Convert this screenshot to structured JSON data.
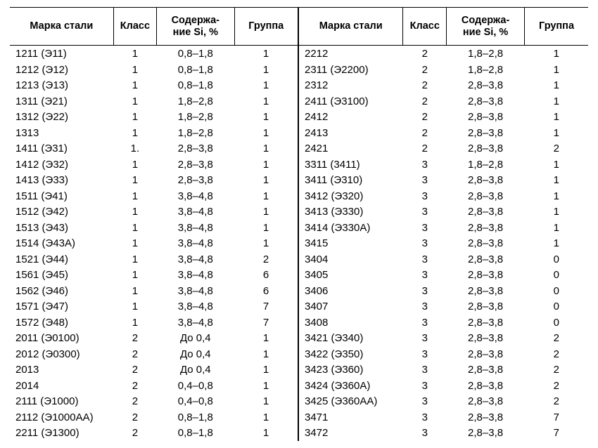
{
  "headers": {
    "mark": "Марка стали",
    "klass": "Класс",
    "si": "Содержа-\nние Si, %",
    "group": "Группа"
  },
  "columns": [
    "mark",
    "klass",
    "si",
    "group"
  ],
  "widths": {
    "mark": "36%",
    "klass": "15%",
    "si": "27%",
    "group": "22%"
  },
  "fonts": {
    "header_pt": 14.5,
    "body_pt": 15
  },
  "colors": {
    "text": "#000000",
    "background": "#ffffff",
    "border": "#000000"
  },
  "left": [
    {
      "mark": "1211 (Э11)",
      "klass": "1",
      "si": "0,8–1,8",
      "group": "1"
    },
    {
      "mark": "1212 (Э12)",
      "klass": "1",
      "si": "0,8–1,8",
      "group": "1"
    },
    {
      "mark": "1213 (Э13)",
      "klass": "1",
      "si": "0,8–1,8",
      "group": "1"
    },
    {
      "mark": "1311 (Э21)",
      "klass": "1",
      "si": "1,8–2,8",
      "group": "1"
    },
    {
      "mark": "1312 (Э22)",
      "klass": "1",
      "si": "1,8–2,8",
      "group": "1"
    },
    {
      "mark": "1313",
      "klass": "1",
      "si": "1,8–2,8",
      "group": "1"
    },
    {
      "mark": "1411 (Э31)",
      "klass": "1.",
      "si": "2,8–3,8",
      "group": "1"
    },
    {
      "mark": "1412 (Э32)",
      "klass": "1",
      "si": "2,8–3,8",
      "group": "1"
    },
    {
      "mark": "1413 (Э33)",
      "klass": "1",
      "si": "2,8–3,8",
      "group": "1"
    },
    {
      "mark": "1511 (Э41)",
      "klass": "1",
      "si": "3,8–4,8",
      "group": "1"
    },
    {
      "mark": "1512 (Э42)",
      "klass": "1",
      "si": "3,8–4,8",
      "group": "1"
    },
    {
      "mark": "1513 (Э43)",
      "klass": "1",
      "si": "3,8–4,8",
      "group": "1"
    },
    {
      "mark": "1514 (Э43А)",
      "klass": "1",
      "si": "3,8–4,8",
      "group": "1"
    },
    {
      "mark": "1521 (Э44)",
      "klass": "1",
      "si": "3,8–4,8",
      "group": "2"
    },
    {
      "mark": "1561 (Э45)",
      "klass": "1",
      "si": "3,8–4,8",
      "group": "6"
    },
    {
      "mark": "1562 (Э46)",
      "klass": "1",
      "si": "3,8–4,8",
      "group": "6"
    },
    {
      "mark": "1571 (Э47)",
      "klass": "1",
      "si": "3,8–4,8",
      "group": "7"
    },
    {
      "mark": "1572 (Э48)",
      "klass": "1",
      "si": "3,8–4,8",
      "group": "7"
    },
    {
      "mark": "2011 (Э0100)",
      "klass": "2",
      "si": "До 0,4",
      "group": "1"
    },
    {
      "mark": "2012 (Э0300)",
      "klass": "2",
      "si": "До 0,4",
      "group": "1"
    },
    {
      "mark": "2013",
      "klass": "2",
      "si": "До 0,4",
      "group": "1"
    },
    {
      "mark": "2014",
      "klass": "2",
      "si": "0,4–0,8",
      "group": "1"
    },
    {
      "mark": "2111 (Э1000)",
      "klass": "2",
      "si": "0,4–0,8",
      "group": "1"
    },
    {
      "mark": "2112 (Э1000АА)",
      "klass": "2",
      "si": "0,8–1,8",
      "group": "1"
    },
    {
      "mark": "2211 (Э1300)",
      "klass": "2",
      "si": "0,8–1,8",
      "group": "1"
    }
  ],
  "right": [
    {
      "mark": "2212",
      "klass": "2",
      "si": "1,8–2,8",
      "group": "1"
    },
    {
      "mark": "2311 (Э2200)",
      "klass": "2",
      "si": "1,8–2,8",
      "group": "1"
    },
    {
      "mark": "2312",
      "klass": "2",
      "si": "2,8–3,8",
      "group": "1"
    },
    {
      "mark": "2411 (Э3100)",
      "klass": "2",
      "si": "2,8–3,8",
      "group": "1"
    },
    {
      "mark": "2412",
      "klass": "2",
      "si": "2,8–3,8",
      "group": "1"
    },
    {
      "mark": "2413",
      "klass": "2",
      "si": "2,8–3,8",
      "group": "1"
    },
    {
      "mark": "2421",
      "klass": "2",
      "si": "2,8–3,8",
      "group": "2"
    },
    {
      "mark": "3311 (3411)",
      "klass": "3",
      "si": "1,8–2,8",
      "group": "1"
    },
    {
      "mark": "3411 (Э310)",
      "klass": "3",
      "si": "2,8–3,8",
      "group": "1"
    },
    {
      "mark": "3412 (Э320)",
      "klass": "3",
      "si": "2,8–3,8",
      "group": "1"
    },
    {
      "mark": "3413 (Э330)",
      "klass": "3",
      "si": "2,8–3,8",
      "group": "1"
    },
    {
      "mark": "3414 (Э330А)",
      "klass": "3",
      "si": "2,8–3,8",
      "group": "1"
    },
    {
      "mark": "3415",
      "klass": "3",
      "si": "2,8–3,8",
      "group": "1"
    },
    {
      "mark": "3404",
      "klass": "3",
      "si": "2,8–3,8",
      "group": "0"
    },
    {
      "mark": "3405",
      "klass": "3",
      "si": "2,8–3,8",
      "group": "0"
    },
    {
      "mark": "3406",
      "klass": "3",
      "si": "2,8–3,8",
      "group": "0"
    },
    {
      "mark": "3407",
      "klass": "3",
      "si": "2,8–3,8",
      "group": "0"
    },
    {
      "mark": "3408",
      "klass": "3",
      "si": "2,8–3,8",
      "group": "0"
    },
    {
      "mark": "3421 (Э340)",
      "klass": "3",
      "si": "2,8–3,8",
      "group": "2"
    },
    {
      "mark": "3422 (Э350)",
      "klass": "3",
      "si": "2,8–3,8",
      "group": "2"
    },
    {
      "mark": "3423 (Э360)",
      "klass": "3",
      "si": "2,8–3,8",
      "group": "2"
    },
    {
      "mark": "3424 (Э360А)",
      "klass": "3",
      "si": "2,8–3,8",
      "group": "2"
    },
    {
      "mark": "3425 (Э360АА)",
      "klass": "3",
      "si": "2,8–3,8",
      "group": "2"
    },
    {
      "mark": "3471",
      "klass": "3",
      "si": "2,8–3,8",
      "group": "7"
    },
    {
      "mark": "3472",
      "klass": "3",
      "si": "2,8–3,8",
      "group": "7"
    }
  ]
}
